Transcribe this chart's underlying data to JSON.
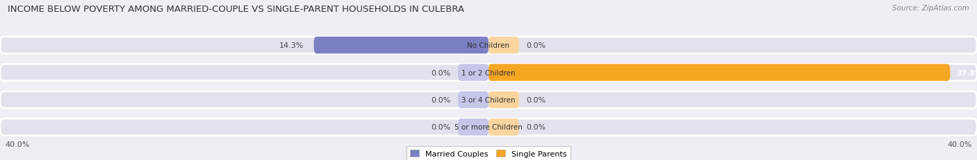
{
  "title": "INCOME BELOW POVERTY AMONG MARRIED-COUPLE VS SINGLE-PARENT HOUSEHOLDS IN CULEBRA",
  "source": "Source: ZipAtlas.com",
  "categories": [
    "No Children",
    "1 or 2 Children",
    "3 or 4 Children",
    "5 or more Children"
  ],
  "married_values": [
    14.3,
    0.0,
    0.0,
    0.0
  ],
  "single_values": [
    0.0,
    37.8,
    0.0,
    0.0
  ],
  "married_color": "#7b7fc4",
  "married_color_light": "#c5c6e8",
  "single_color": "#f5a623",
  "single_color_light": "#fad5a0",
  "axis_limit": 40.0,
  "background_color": "#eeeef4",
  "bar_bg_color": "#e2e2ec",
  "title_fontsize": 9.5,
  "source_fontsize": 7.5,
  "label_fontsize": 8,
  "category_fontsize": 7.5,
  "legend_fontsize": 8,
  "stub_size": 2.5
}
